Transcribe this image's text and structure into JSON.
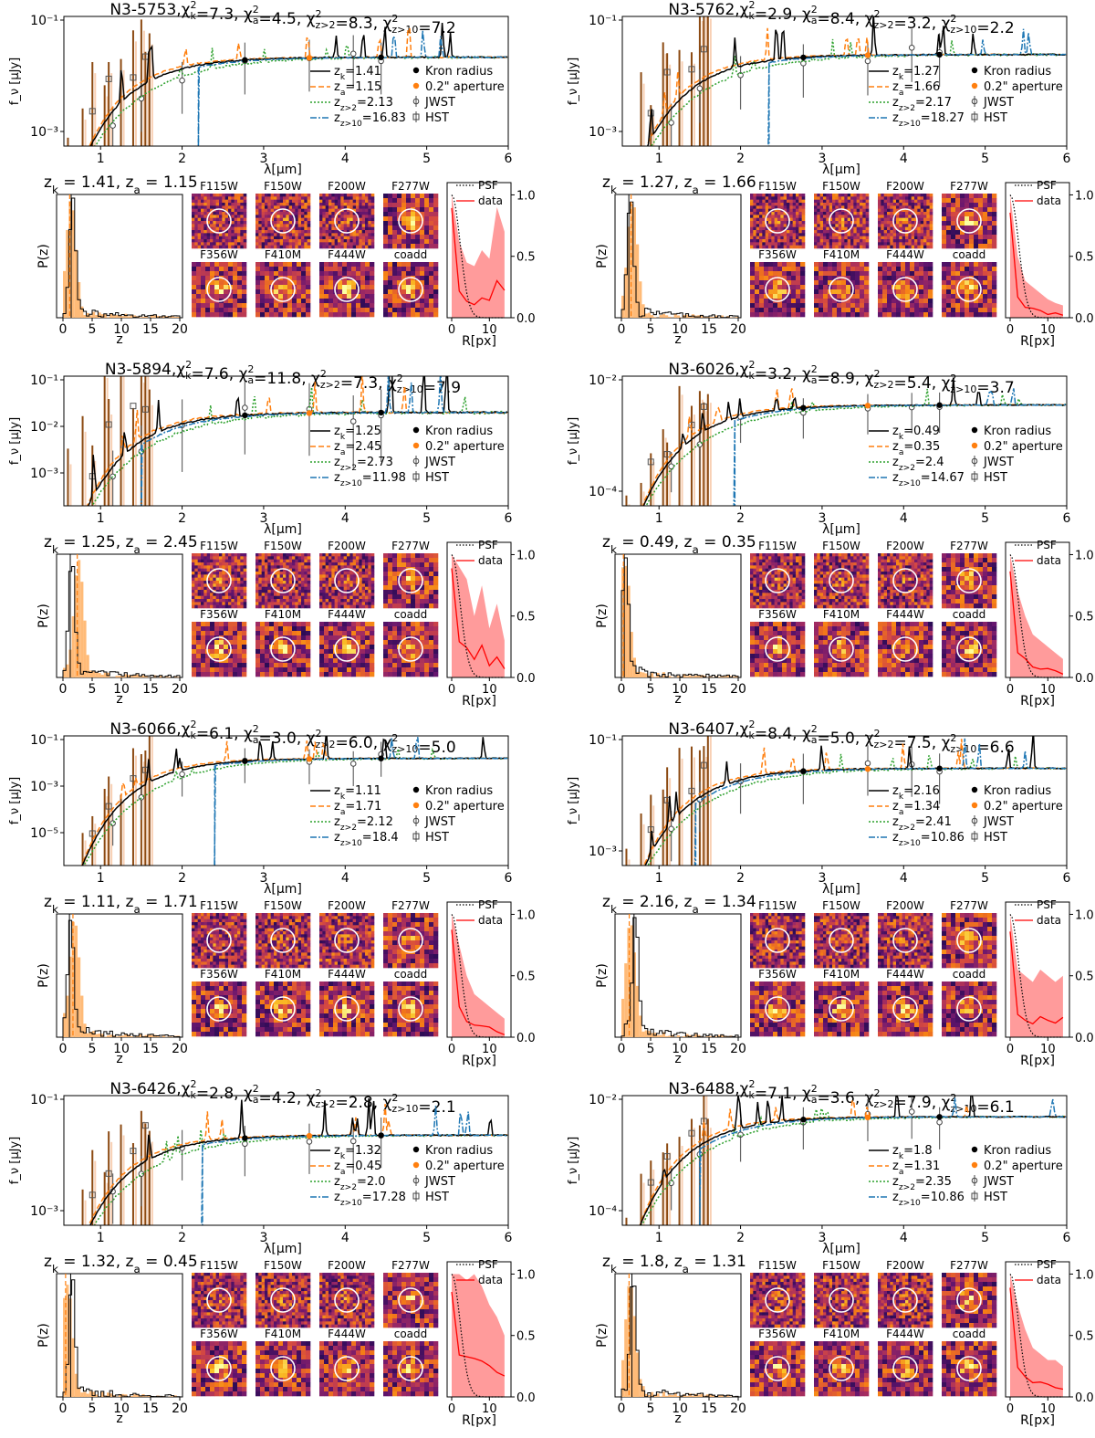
{
  "figure": {
    "common": {
      "sed_xlabel": "λ[μm]",
      "sed_ylabel": "f_ν [μJy]",
      "pz_xlabel": "z",
      "pz_ylabel": "P(z)",
      "prof_xlabel": "R[px]",
      "sed_xticks": [
        "1",
        "2",
        "3",
        "4",
        "5",
        "6"
      ],
      "pz_xticks": [
        "0",
        "5",
        "10",
        "15",
        "20"
      ],
      "prof_xticks": [
        "0",
        "10"
      ],
      "prof_yticks": [
        "0.0",
        "0.5",
        "1.0"
      ],
      "stamp_labels": [
        "F115W",
        "F150W",
        "F200W",
        "F277W",
        "F356W",
        "F410M",
        "F444W",
        "coadd"
      ],
      "legend_right": [
        "Kron radius",
        "0.2\" aperture",
        "JWST",
        "HST"
      ],
      "prof_legend": [
        "PSF",
        "data"
      ],
      "colors": {
        "zk": "#000000",
        "za": "#ff7f0e",
        "z2": "#2ca02c",
        "z10": "#1f77b4",
        "hst": "#8c4a12",
        "hist_a": "#ffbb78",
        "profile": "#ff0000",
        "band": "#ff8a8a"
      }
    }
  },
  "chart_data": [
    {
      "type": "line",
      "id": "N3-5753",
      "title_id": "N3-5753",
      "title_chi": [
        "7.3",
        "4.5",
        "8.3",
        "7.2"
      ],
      "sed_ylim_log": [
        -4.5,
        -1
      ],
      "sed_yticks": [
        "10⁻¹",
        "10⁻³"
      ],
      "legend": [
        "z_k=1.41",
        "z_a=1.15",
        "z_{z>2}=2.13",
        "z_{z>10}=16.83"
      ],
      "zk": "1.41",
      "za": "1.15",
      "z10_break": 2.2,
      "pz_heading": "z_k = 1.41, z_a = 1.15",
      "flux_level": -2.1,
      "profile_band": [
        1.0,
        0.62,
        0.45,
        0.42,
        0.55,
        0.48,
        0.9,
        0.7
      ]
    },
    {
      "type": "line",
      "id": "N3-5762",
      "title_id": "N3-5762",
      "title_chi": [
        "2.9",
        "8.4",
        "3.2",
        "2.2"
      ],
      "sed_ylim_log": [
        -4.2,
        -0.8
      ],
      "sed_yticks": [
        "10⁻¹",
        "10⁻³"
      ],
      "legend": [
        "z_k=1.27",
        "z_a=1.66",
        "z_{z>2}=2.17",
        "z_{z>10}=18.27"
      ],
      "zk": "1.27",
      "za": "1.66",
      "z10_break": 2.35,
      "pz_heading": "z_k = 1.27, z_a = 1.66",
      "flux_level": -1.8,
      "profile_band": [
        1.0,
        0.5,
        0.3,
        0.25,
        0.2,
        0.15,
        0.12,
        0.1
      ]
    },
    {
      "type": "line",
      "id": "N3-5894",
      "title_id": "N3-5894",
      "title_chi": [
        "7.6",
        "11.8",
        "7.3",
        "7.9"
      ],
      "sed_ylim_log": [
        -3.5,
        -1
      ],
      "sed_yticks": [
        "10⁻¹",
        "10⁻²",
        "10⁻³"
      ],
      "legend": [
        "z_k=1.25",
        "z_a=2.45",
        "z_{z>2}=2.73",
        "z_{z>10}=11.98"
      ],
      "zk": "1.25",
      "za": "2.45",
      "z10_break": 1.5,
      "pz_heading": "z_k = 1.25, z_a = 2.45",
      "flux_level": -1.7,
      "profile_band": [
        1.0,
        0.9,
        0.8,
        0.5,
        0.75,
        0.4,
        0.6,
        0.3
      ]
    },
    {
      "type": "line",
      "id": "N3-6026",
      "title_id": "N3-6026",
      "title_chi": [
        "3.2",
        "8.9",
        "5.4",
        "3.7"
      ],
      "sed_ylim_log": [
        -5.5,
        -1
      ],
      "sed_yticks": [
        "10⁻²",
        "10⁻⁴"
      ],
      "legend": [
        "z_k=0.49",
        "z_a=0.35",
        "z_{z>2}=2.4",
        "z_{z>10}=14.67"
      ],
      "zk": "0.49",
      "za": "0.35",
      "z10_break": 1.93,
      "pz_heading": "z_k = 0.49, z_a = 0.35",
      "flux_level": -2.0,
      "profile_band": [
        1.0,
        0.7,
        0.5,
        0.35,
        0.3,
        0.25,
        0.2,
        0.15
      ]
    },
    {
      "type": "line",
      "id": "N3-6066",
      "title_id": "N3-6066",
      "title_chi": [
        "6.1",
        "3.0",
        "6.0",
        "5.0"
      ],
      "sed_ylim_log": [
        -6.2,
        -1
      ],
      "sed_yticks": [
        "10⁻¹",
        "10⁻³",
        "10⁻⁵"
      ],
      "legend": [
        "z_k=1.11",
        "z_a=1.71",
        "z_{z>2}=2.12",
        "z_{z>10}=18.4"
      ],
      "zk": "1.11",
      "za": "1.71",
      "z10_break": 2.4,
      "pz_heading": "z_k = 1.11, z_a = 1.71",
      "flux_level": -1.9,
      "profile_band": [
        1.0,
        0.75,
        0.5,
        0.35,
        0.3,
        0.25,
        0.2,
        0.15
      ]
    },
    {
      "type": "line",
      "id": "N3-6407",
      "title_id": "N3-6407",
      "title_chi": [
        "8.4",
        "5.0",
        "7.5",
        "6.6"
      ],
      "sed_ylim_log": [
        -4.5,
        -0.9
      ],
      "sed_yticks": [
        "10⁻¹",
        "10⁻³"
      ],
      "legend": [
        "z_k=2.16",
        "z_a=1.34",
        "z_{z>2}=2.41",
        "z_{z>10}=10.86"
      ],
      "zk": "2.16",
      "za": "1.34",
      "z10_break": 1.45,
      "pz_heading": "z_k = 2.16, z_a = 1.34",
      "flux_level": -1.8,
      "profile_band": [
        1.0,
        0.55,
        0.5,
        0.45,
        0.55,
        0.5,
        0.45,
        0.5
      ]
    },
    {
      "type": "line",
      "id": "N3-6426",
      "title_id": "N3-6426",
      "title_chi": [
        "2.8",
        "4.2",
        "2.8",
        "2.1"
      ],
      "sed_ylim_log": [
        -4.5,
        -0.9
      ],
      "sed_yticks": [
        "10⁻¹",
        "10⁻³"
      ],
      "legend": [
        "z_k=1.32",
        "z_a=0.45",
        "z_{z>2}=2.0",
        "z_{z>10}=17.28"
      ],
      "zk": "1.32",
      "za": "0.45",
      "z10_break": 2.25,
      "pz_heading": "z_k = 1.32, z_a = 0.45",
      "flux_level": -2.0,
      "profile_band": [
        1.0,
        1.0,
        0.95,
        1.0,
        0.9,
        0.75,
        0.65,
        0.5
      ]
    },
    {
      "type": "line",
      "id": "N3-6488",
      "title_id": "N3-6488",
      "title_chi": [
        "7.1",
        "3.6",
        "7.9",
        "6.1"
      ],
      "sed_ylim_log": [
        -5.5,
        -1.2
      ],
      "sed_yticks": [
        "10⁻²",
        "10⁻⁴"
      ],
      "legend": [
        "z_k=1.8",
        "z_a=1.31",
        "z_{z>2}=2.35",
        "z_{z>10}=10.86"
      ],
      "zk": "1.8",
      "za": "1.31",
      "z10_break": 1.5,
      "pz_heading": "z_k = 1.8, z_a = 1.31",
      "flux_level": -1.9,
      "profile_band": [
        1.0,
        0.75,
        0.55,
        0.4,
        0.35,
        0.3,
        0.3,
        0.25
      ]
    }
  ]
}
